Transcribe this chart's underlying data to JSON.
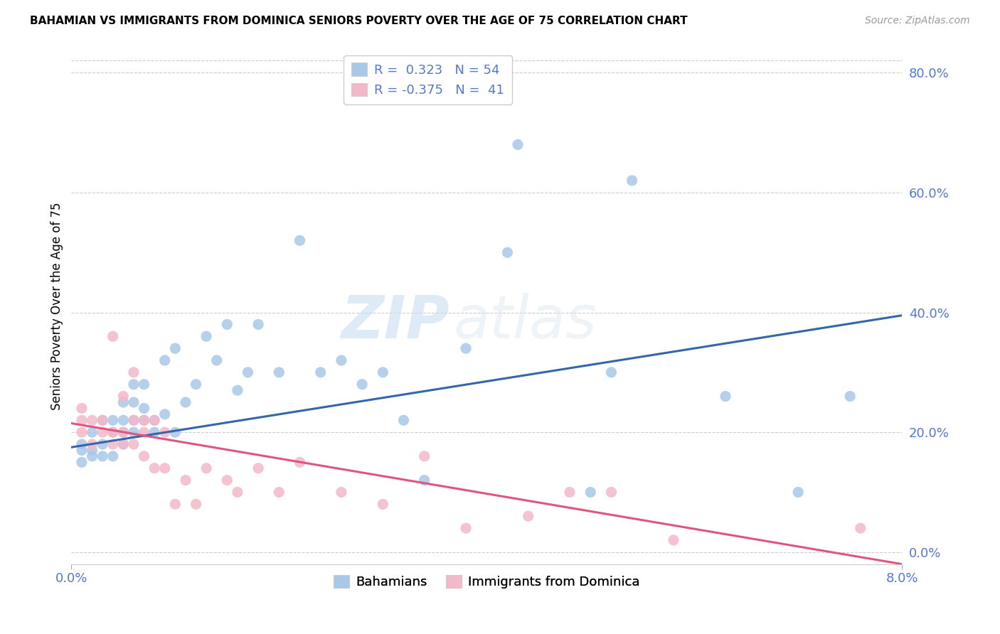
{
  "title": "BAHAMIAN VS IMMIGRANTS FROM DOMINICA SENIORS POVERTY OVER THE AGE OF 75 CORRELATION CHART",
  "source": "Source: ZipAtlas.com",
  "ylabel": "Seniors Poverty Over the Age of 75",
  "legend_blue_label": "Bahamians",
  "legend_pink_label": "Immigrants from Dominica",
  "watermark_zip": "ZIP",
  "watermark_atlas": "atlas",
  "blue_color": "#a8c8e8",
  "pink_color": "#f4b8c8",
  "blue_line_color": "#3366aa",
  "pink_line_color": "#e05580",
  "tick_color": "#5577cc",
  "R_blue": 0.323,
  "N_blue": 54,
  "R_pink": -0.375,
  "N_pink": 41,
  "xrange": [
    0.0,
    0.08
  ],
  "yrange": [
    -0.02,
    0.84
  ],
  "ytick_vals": [
    0.0,
    0.2,
    0.4,
    0.6,
    0.8
  ],
  "ytick_labels": [
    "0.0%",
    "20.0%",
    "40.0%",
    "60.0%",
    "80.0%"
  ],
  "blue_line_x0": 0.0,
  "blue_line_y0": 0.175,
  "blue_line_x1": 0.08,
  "blue_line_y1": 0.395,
  "pink_line_x0": 0.0,
  "pink_line_y0": 0.215,
  "pink_line_x1": 0.08,
  "pink_line_y1": -0.02,
  "blue_x": [
    0.001,
    0.001,
    0.001,
    0.002,
    0.002,
    0.002,
    0.003,
    0.003,
    0.003,
    0.004,
    0.004,
    0.004,
    0.005,
    0.005,
    0.005,
    0.005,
    0.006,
    0.006,
    0.006,
    0.006,
    0.007,
    0.007,
    0.007,
    0.008,
    0.008,
    0.009,
    0.009,
    0.01,
    0.01,
    0.011,
    0.012,
    0.013,
    0.014,
    0.015,
    0.016,
    0.017,
    0.018,
    0.02,
    0.022,
    0.024,
    0.026,
    0.028,
    0.03,
    0.032,
    0.034,
    0.038,
    0.042,
    0.043,
    0.05,
    0.052,
    0.054,
    0.063,
    0.07,
    0.075
  ],
  "blue_y": [
    0.15,
    0.17,
    0.18,
    0.16,
    0.17,
    0.2,
    0.16,
    0.18,
    0.22,
    0.16,
    0.2,
    0.22,
    0.18,
    0.2,
    0.22,
    0.25,
    0.2,
    0.22,
    0.25,
    0.28,
    0.22,
    0.24,
    0.28,
    0.2,
    0.22,
    0.23,
    0.32,
    0.2,
    0.34,
    0.25,
    0.28,
    0.36,
    0.32,
    0.38,
    0.27,
    0.3,
    0.38,
    0.3,
    0.52,
    0.3,
    0.32,
    0.28,
    0.3,
    0.22,
    0.12,
    0.34,
    0.5,
    0.68,
    0.1,
    0.3,
    0.62,
    0.26,
    0.1,
    0.26
  ],
  "pink_x": [
    0.001,
    0.001,
    0.001,
    0.002,
    0.002,
    0.003,
    0.003,
    0.004,
    0.004,
    0.004,
    0.005,
    0.005,
    0.005,
    0.006,
    0.006,
    0.006,
    0.007,
    0.007,
    0.007,
    0.008,
    0.008,
    0.009,
    0.009,
    0.01,
    0.011,
    0.012,
    0.013,
    0.015,
    0.016,
    0.018,
    0.02,
    0.022,
    0.026,
    0.03,
    0.034,
    0.038,
    0.044,
    0.048,
    0.052,
    0.058,
    0.076
  ],
  "pink_y": [
    0.2,
    0.22,
    0.24,
    0.18,
    0.22,
    0.2,
    0.22,
    0.18,
    0.2,
    0.36,
    0.18,
    0.2,
    0.26,
    0.18,
    0.22,
    0.3,
    0.16,
    0.2,
    0.22,
    0.14,
    0.22,
    0.14,
    0.2,
    0.08,
    0.12,
    0.08,
    0.14,
    0.12,
    0.1,
    0.14,
    0.1,
    0.15,
    0.1,
    0.08,
    0.16,
    0.04,
    0.06,
    0.1,
    0.1,
    0.02,
    0.04
  ]
}
